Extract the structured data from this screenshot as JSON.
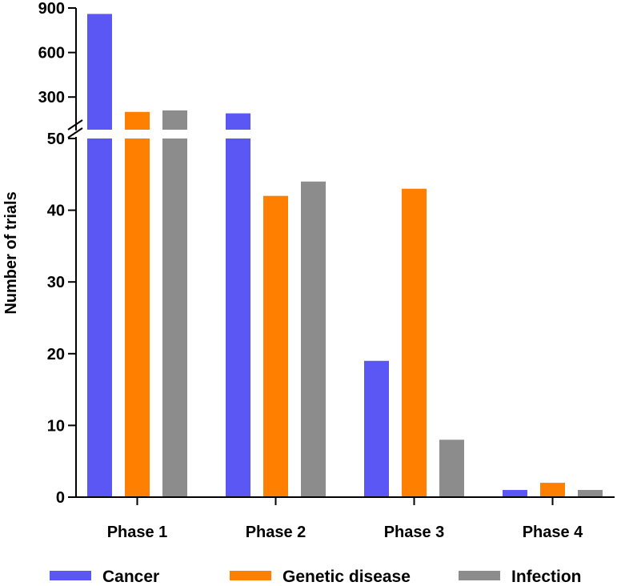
{
  "chart_data": {
    "type": "bar",
    "categories": [
      "Phase 1",
      "Phase 2",
      "Phase 3",
      "Phase 4"
    ],
    "series": [
      {
        "name": "Cancer",
        "color": "#5b57f5",
        "values": [
          860,
          190,
          19,
          1
        ]
      },
      {
        "name": "Genetic disease",
        "color": "#ff8000",
        "values": [
          200,
          42,
          43,
          2
        ]
      },
      {
        "name": "Infection",
        "color": "#8c8c8c",
        "values": [
          210,
          44,
          8,
          1
        ]
      }
    ],
    "ylabel": "Number of trials",
    "xlabel": "",
    "y_axis_break": true,
    "ylim_lower": [
      0,
      50
    ],
    "ylim_upper": [
      80,
      900
    ],
    "yticks_lower": [
      "0",
      "10",
      "20",
      "30",
      "40",
      "50"
    ],
    "yticks_upper": [
      "300",
      "600",
      "900"
    ],
    "legend_position": "bottom",
    "grid": false
  }
}
